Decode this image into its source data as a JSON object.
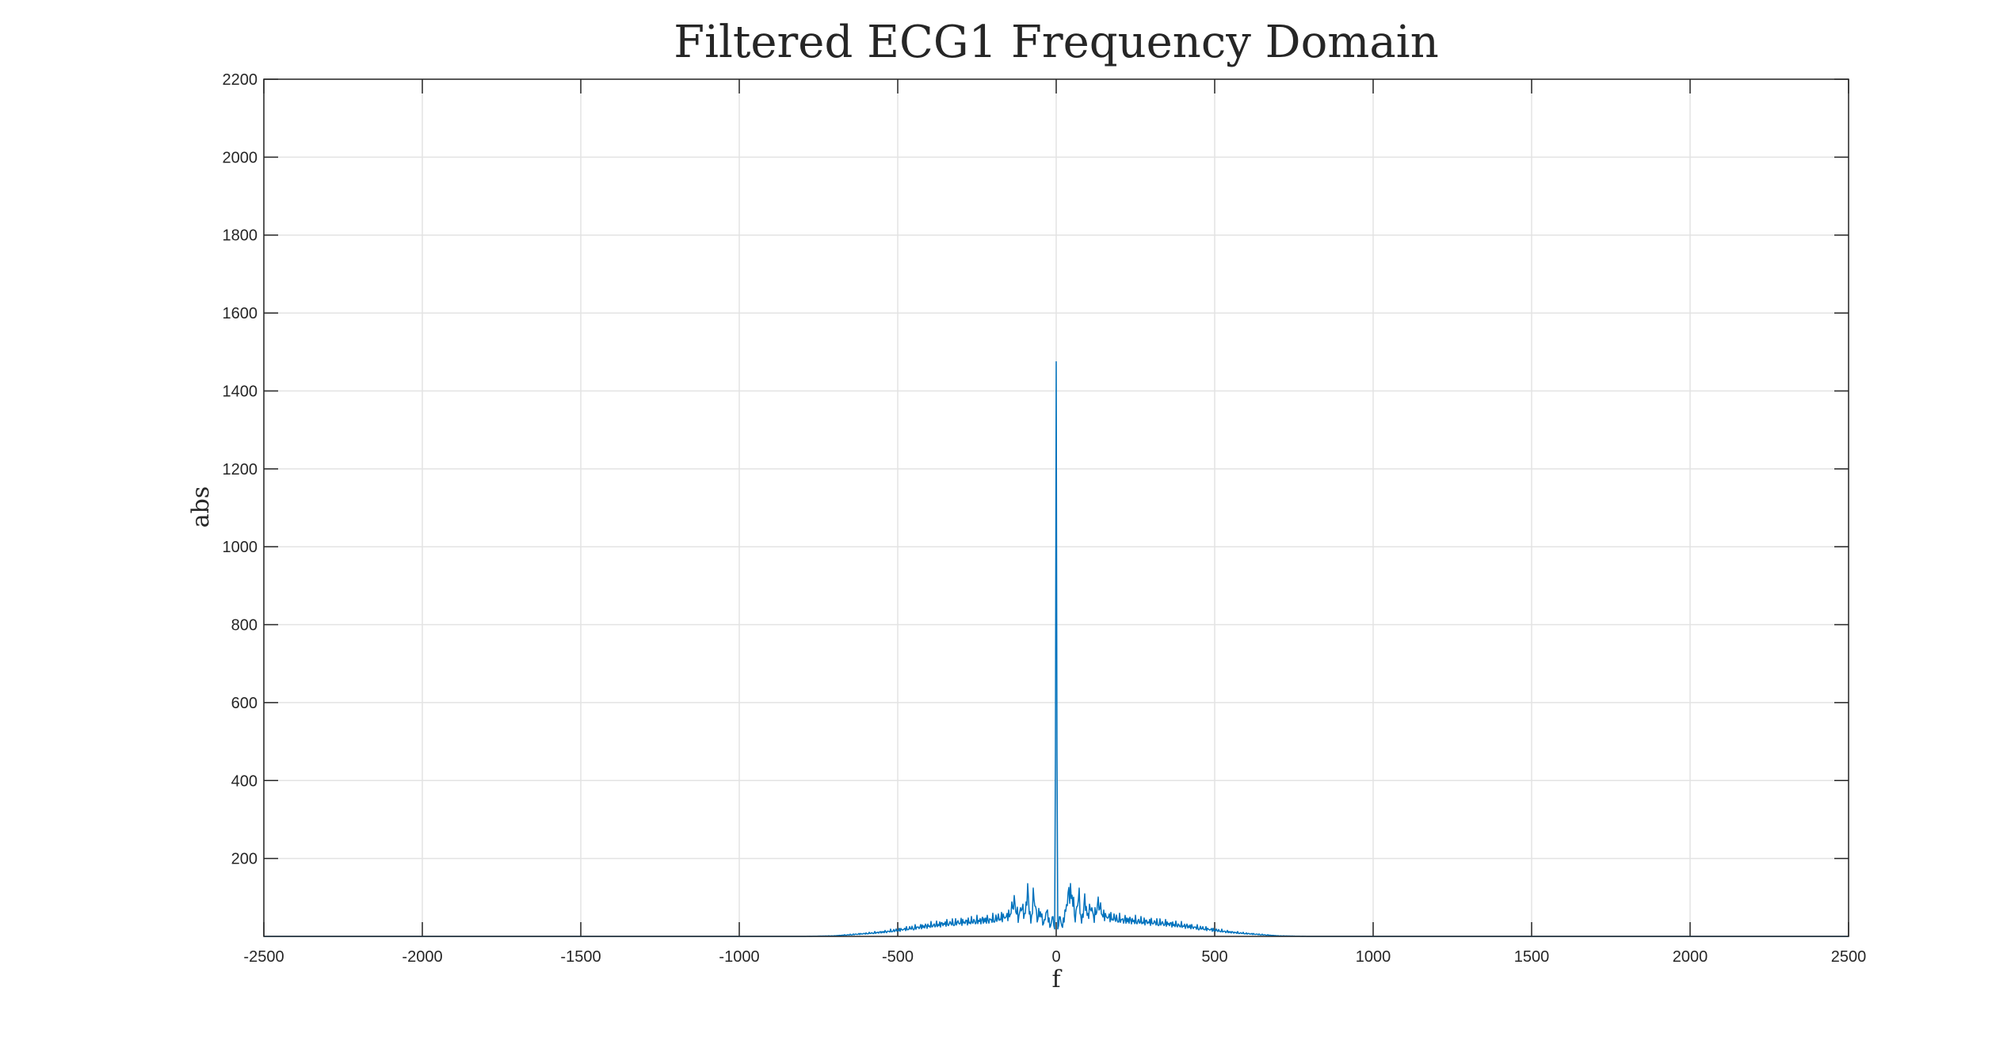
{
  "chart_data": {
    "type": "line",
    "title": "Filtered ECG1 Frequency Domain",
    "xlabel": "f",
    "ylabel": "abs",
    "xlim": [
      -2500,
      2500
    ],
    "ylim": [
      0,
      2200
    ],
    "xticks": [
      -2500,
      -2000,
      -1500,
      -1000,
      -500,
      0,
      500,
      1000,
      1500,
      2000,
      2500
    ],
    "yticks": [
      200,
      400,
      600,
      800,
      1000,
      1200,
      1400,
      1600,
      1800,
      2000,
      2200
    ],
    "grid": true,
    "series_color": "#0072BD",
    "series": [
      {
        "x": [
          -2500,
          -2000,
          -1500,
          -1000,
          -800,
          -700,
          -650,
          -600,
          -550,
          -500,
          -450,
          -400,
          -350,
          -300,
          -250,
          -200,
          -150,
          -130,
          -120,
          -110,
          -100,
          -90,
          -80,
          -70,
          -60,
          -50,
          -40,
          -30,
          -20,
          -10,
          -5,
          0,
          5,
          10,
          20,
          30,
          40,
          50,
          60,
          70,
          80,
          90,
          100,
          110,
          120,
          130,
          150,
          200,
          250,
          300,
          350,
          400,
          450,
          500,
          550,
          600,
          650,
          700,
          800,
          1000,
          1500,
          2000,
          2500
        ],
        "y": [
          0,
          0,
          0,
          0,
          0,
          2,
          6,
          10,
          15,
          22,
          30,
          38,
          45,
          50,
          55,
          60,
          72,
          125,
          60,
          110,
          70,
          155,
          50,
          150,
          60,
          90,
          40,
          95,
          35,
          70,
          20,
          1475,
          20,
          70,
          35,
          95,
          155,
          150,
          60,
          150,
          50,
          125,
          70,
          110,
          60,
          120,
          72,
          60,
          55,
          50,
          45,
          38,
          30,
          22,
          15,
          10,
          6,
          2,
          0,
          0,
          0,
          0,
          0
        ]
      }
    ]
  }
}
